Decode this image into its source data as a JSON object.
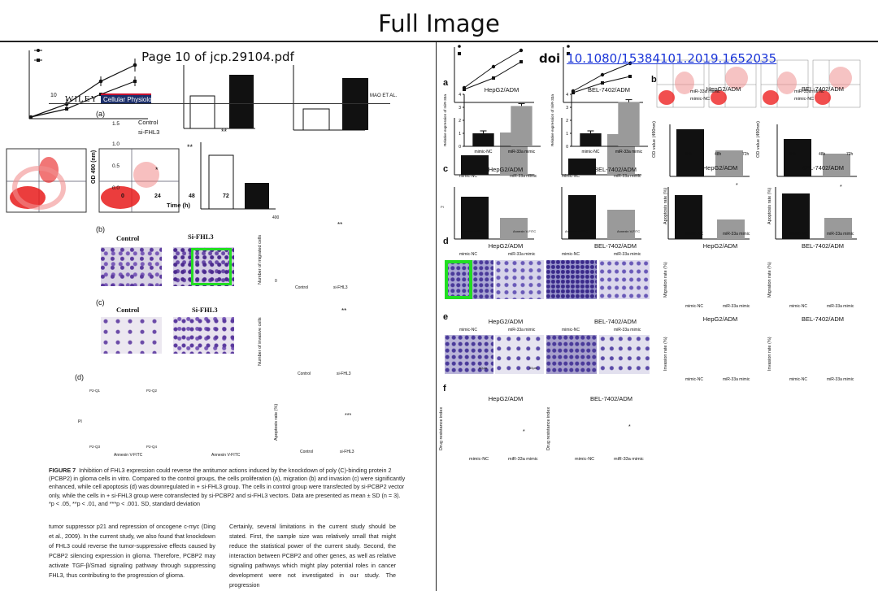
{
  "header": {
    "title": "Full Image"
  },
  "left_pane": {
    "page_title": "Page 10 of jcp.29104.pdf",
    "journal": {
      "page_no": "10",
      "brand": "WILEY",
      "journal_name": "Cellular Physiology",
      "running_head": "MAO ET AL."
    },
    "panel_labels": [
      "(a)",
      "(b)",
      "(c)",
      "(d)"
    ],
    "panel_a": {
      "legend": [
        "Control",
        "si-FHL3"
      ],
      "ylabel": "OD 490 (nm)",
      "xlabel": "Time (h)",
      "xticks": [
        "0",
        "24",
        "48",
        "72"
      ],
      "yticks": [
        "0.0",
        "0.5",
        "1.0",
        "1.5"
      ],
      "marks": [
        "*",
        "**",
        "**"
      ]
    },
    "panel_b": {
      "col_labels": [
        "Control",
        "Si-FHL3"
      ],
      "ylabel": "Number of migrated cells",
      "yticks": [
        "0",
        "100",
        "200",
        "300",
        "400"
      ],
      "xcats": [
        "Control",
        "si-FHL3"
      ],
      "mark": "**"
    },
    "panel_c": {
      "col_labels": [
        "Control",
        "Si-FHL3"
      ],
      "ylabel": "Number of invasive cells",
      "yticks": [
        "0",
        "100",
        "200",
        "300",
        "400",
        "500"
      ],
      "xcats": [
        "Control",
        "si-FHL3"
      ],
      "mark": "**"
    },
    "panel_d": {
      "ylabel": "Apoptosis rate (%)",
      "yticks": [
        "0",
        "20",
        "40",
        "60"
      ],
      "xcats": [
        "Control",
        "si-FHL3"
      ],
      "mark": "***",
      "flow_xlabel": "Annexin V-FITC",
      "flow_ylabel": "PI",
      "quadrants": [
        "P2-Q1",
        "P2-Q2",
        "P2-Q3",
        "P2-Q4"
      ]
    },
    "caption_bold": "FIGURE 7",
    "caption": "Inhibition of FHL3 expression could reverse the antitumor actions induced by the knockdown of poly (C)-binding protein 2 (PCBP2) in glioma cells in vitro. Compared to the control groups, the cells proliferation (a), migration (b) and invasion (c) were significantly enhanced, while cell apoptosis (d) was downregulated in + si-FHL3 group. The cells in control group were transfected by si-PCBP2 vector only, while the cells in + si-FHL3 group were cotransfected by si-PCBP2 and si-FHL3 vectors. Data are presented as mean ± SD (n = 3). *p < .05, **p < .01, and ***p < .001. SD, standard deviation",
    "body_left": "tumor suppressor p21 and repression of oncogene c-myc (Ding et al., 2009). In the current study, we also found that knockdown of FHL3 could reverse the tumor-suppressive effects caused by PCBP2 silencing expression in glioma. Therefore, PCBP2 may activate TGF-β/Smad signaling pathway through suppressing FHL3, thus contributing to the progression of glioma.",
    "body_right": "Certainly, several limitations in the current study should be stated. First, the sample size was relatively small that might reduce the statistical power of the current study. Second, the interaction between PCBP2 and other genes, as well as relative signaling pathways which might play potential roles in cancer development were not investigated in our study. The progression"
  },
  "right_pane": {
    "doi_label": "doi",
    "doi_link": "10.1080/15384101.2019.1652035",
    "panel_labels": [
      "a",
      "b",
      "c",
      "d",
      "e",
      "f"
    ],
    "cell_lines": [
      "HepG2/ADM",
      "BEL-7402/ADM"
    ],
    "groups": [
      "mimic-NC",
      "miR-33a mimic"
    ],
    "ylabels": {
      "expression": "Relative expression of miR-33a",
      "od": "OD value (490nm)",
      "apoptosis": "Apoptosis rate (%)",
      "migration": "Migration rate (%)",
      "invasion": "Invasion rate (%)",
      "drug": "Drug resistance index"
    },
    "flow_axes": {
      "x": "Annexin V-FITC",
      "y": "PI"
    },
    "od_xticks": [
      "24h",
      "48h",
      "72h"
    ],
    "scale_bar": "50μm",
    "mark": "*"
  },
  "chart_data": [
    {
      "type": "bar",
      "title": "HepG2/ADM",
      "categories": [
        "mimic-NC",
        "miR-33a mimic"
      ],
      "values": [
        1.0,
        3.1
      ],
      "ylabel": "Relative expression of miR-33a",
      "ylim": [
        0,
        4
      ],
      "yticks": [
        0,
        1,
        2,
        3,
        4
      ],
      "colors": [
        "#111111",
        "#9a9a9a"
      ]
    },
    {
      "type": "bar",
      "title": "BEL-7402/ADM",
      "categories": [
        "mimic-NC",
        "miR-33a mimic"
      ],
      "values": [
        1.0,
        3.4
      ],
      "ylabel": "Relative expression of miR-33a",
      "ylim": [
        0,
        4
      ],
      "yticks": [
        0,
        1,
        2,
        3,
        4
      ],
      "colors": [
        "#111111",
        "#9a9a9a"
      ]
    }
  ]
}
